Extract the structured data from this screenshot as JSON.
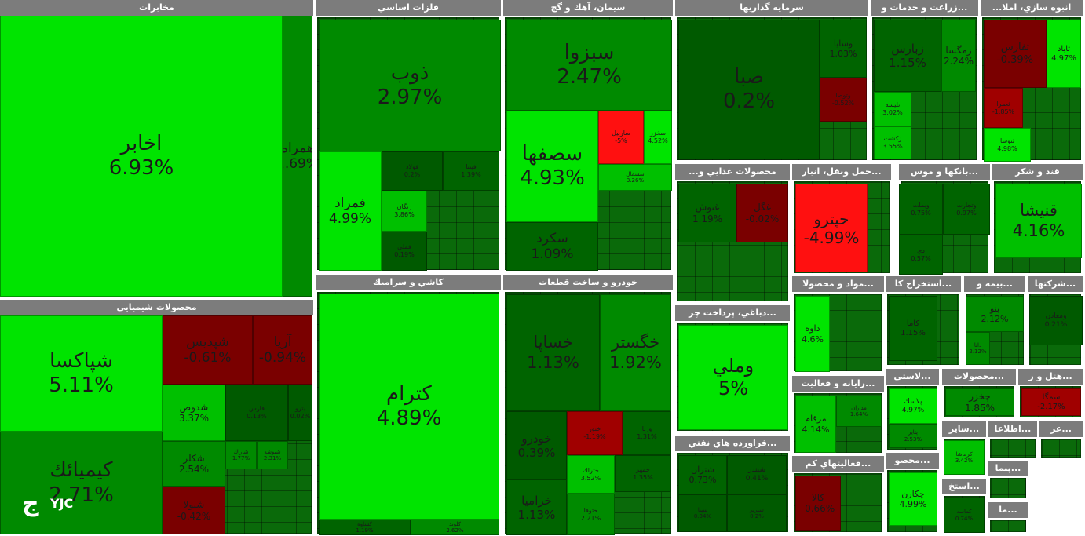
{
  "colors": {
    "header": "#7c7c7c",
    "strong_pos": "#00e400",
    "pos": "#00c000",
    "mid_pos": "#008a00",
    "weak_pos": "#006400",
    "neutral": "#005a00",
    "weak_neg": "#7a0000",
    "neg": "#a00000",
    "strong_neg": "#ff1010"
  },
  "logo": {
    "brand": "YJC",
    "icon": "yjc-logo-icon"
  },
  "chart_data": {
    "type": "treemap",
    "sectors": [
      {
        "name": "مخابرات",
        "items": [
          {
            "symbol": "اخابر",
            "change": "6.93%",
            "value": 6.93
          },
          {
            "symbol": "همراه",
            "change": "2.69%",
            "value": 2.69
          }
        ]
      },
      {
        "name": "محصولات شيميايي",
        "items": [
          {
            "symbol": "شپاكسا",
            "change": "5.11%",
            "value": 5.11
          },
          {
            "symbol": "كيميائك",
            "change": "2.71%",
            "value": 2.71
          },
          {
            "symbol": "شپديس",
            "change": "-0.61%",
            "value": -0.61
          },
          {
            "symbol": "آريا",
            "change": "-0.94%",
            "value": -0.94
          },
          {
            "symbol": "شدوص",
            "change": "3.37%",
            "value": 3.37
          },
          {
            "symbol": "شكلر",
            "change": "2.54%",
            "value": 2.54
          },
          {
            "symbol": "فارس",
            "change": "0.13%",
            "value": 0.13
          },
          {
            "symbol": "بترو",
            "change": "0.02%",
            "value": 0.02
          },
          {
            "symbol": "شاراك",
            "change": "1.77%",
            "value": 1.77
          },
          {
            "symbol": "شيوشه",
            "change": "2.31%",
            "value": 2.31
          },
          {
            "symbol": "شبولا",
            "change": "-0.42%",
            "value": -0.42
          }
        ]
      },
      {
        "name": "فلزات اساسي",
        "items": [
          {
            "symbol": "ذوب",
            "change": "2.97%",
            "value": 2.97
          },
          {
            "symbol": "فمراد",
            "change": "4.99%",
            "value": 4.99
          },
          {
            "symbol": "فولاد",
            "change": "0.2%",
            "value": 0.2
          },
          {
            "symbol": "فپنتا",
            "change": "1.39%",
            "value": 1.39
          },
          {
            "symbol": "زنگان",
            "change": "3.86%",
            "value": 3.86
          },
          {
            "symbol": "فملي",
            "change": "0.19%",
            "value": 0.19
          }
        ]
      },
      {
        "name": "كاشي و سراميك",
        "items": [
          {
            "symbol": "كترام",
            "change": "4.89%",
            "value": 4.89
          },
          {
            "symbol": "كساوه",
            "change": "1.19%",
            "value": 1.19
          },
          {
            "symbol": "كلوند",
            "change": "2.62%",
            "value": 2.62
          }
        ]
      },
      {
        "name": "سيمان، آهك و گچ",
        "items": [
          {
            "symbol": "سبزوا",
            "change": "2.47%",
            "value": 2.47
          },
          {
            "symbol": "سصفها",
            "change": "4.93%",
            "value": 4.93
          },
          {
            "symbol": "سكرد",
            "change": "1.09%",
            "value": 1.09
          },
          {
            "symbol": "ساربيل",
            "change": "-5%",
            "value": -5
          },
          {
            "symbol": "سخزر",
            "change": "4.52%",
            "value": 4.52
          },
          {
            "symbol": "سشمال",
            "change": "3.26%",
            "value": 3.26
          }
        ]
      },
      {
        "name": "خودرو و ساخت قطعات",
        "items": [
          {
            "symbol": "خساپا",
            "change": "1.13%",
            "value": 1.13
          },
          {
            "symbol": "خگستر",
            "change": "1.92%",
            "value": 1.92
          },
          {
            "symbol": "خودرو",
            "change": "0.39%",
            "value": 0.39
          },
          {
            "symbol": "خراميا",
            "change": "1.13%",
            "value": 1.13
          },
          {
            "symbol": "ختور",
            "change": "-1.19%",
            "value": -1.19
          },
          {
            "symbol": "ورنا",
            "change": "1.31%",
            "value": 1.31
          },
          {
            "symbol": "ختراك",
            "change": "3.52%",
            "value": 3.52
          },
          {
            "symbol": "خمهر",
            "change": "1.35%",
            "value": 1.35
          },
          {
            "symbol": "ختوقا",
            "change": "2.21%",
            "value": 2.21
          }
        ]
      },
      {
        "name": "سرمايه گذاريها",
        "items": [
          {
            "symbol": "صبا",
            "change": "0.2%",
            "value": 0.2
          },
          {
            "symbol": "وسايا",
            "change": "1.03%",
            "value": 1.03
          },
          {
            "symbol": "وتوصا",
            "change": "-0.52%",
            "value": -0.52
          }
        ]
      },
      {
        "name": "...زراعت و خدمات و",
        "items": [
          {
            "symbol": "زبارس",
            "change": "1.15%",
            "value": 1.15
          },
          {
            "symbol": "زمگسا",
            "change": "2.24%",
            "value": 2.24
          },
          {
            "symbol": "تليسه",
            "change": "3.02%",
            "value": 3.02
          },
          {
            "symbol": "زكشت",
            "change": "3.55%",
            "value": 3.55
          }
        ]
      },
      {
        "name": "انبوه سازي، املا...",
        "items": [
          {
            "symbol": "ثفارس",
            "change": "-0.39%",
            "value": -0.39
          },
          {
            "symbol": "ثاباد",
            "change": "4.97%",
            "value": 4.97
          },
          {
            "symbol": "ثعمرا",
            "change": "-1.85%",
            "value": -1.85
          },
          {
            "symbol": "ثنوسا",
            "change": "4.98%",
            "value": 4.98
          }
        ]
      },
      {
        "name": "محصولات غذايي و...",
        "items": [
          {
            "symbol": "غنوش",
            "change": "1.19%",
            "value": 1.19
          },
          {
            "symbol": "غگل",
            "change": "-0.02%",
            "value": -0.02
          }
        ]
      },
      {
        "name": "...حمل ونقل، انبار",
        "items": [
          {
            "symbol": "حپترو",
            "change": "-4.99%",
            "value": -4.99
          }
        ]
      },
      {
        "name": "...بانكها و موس",
        "items": [
          {
            "symbol": "وبملت",
            "change": "0.75%",
            "value": 0.75
          },
          {
            "symbol": "وتجارت",
            "change": "0.97%",
            "value": 0.97
          },
          {
            "symbol": "دي",
            "change": "0.57%",
            "value": 0.57
          }
        ]
      },
      {
        "name": "قند و شكر",
        "items": [
          {
            "symbol": "قنيشا",
            "change": "4.16%",
            "value": 4.16
          }
        ]
      },
      {
        "name": "...دباغي، پرداخت چر",
        "items": [
          {
            "symbol": "وملي",
            "change": "5%",
            "value": 5
          }
        ]
      },
      {
        "name": "...مواد و محصولا",
        "items": [
          {
            "symbol": "داوه",
            "change": "4.6%",
            "value": 4.6
          }
        ]
      },
      {
        "name": "...استخراج كا",
        "items": [
          {
            "symbol": "كاما",
            "change": "1.15%",
            "value": 1.15
          }
        ]
      },
      {
        "name": "...بيمه و",
        "items": [
          {
            "symbol": "بنو",
            "change": "2.12%",
            "value": 2.12
          },
          {
            "symbol": "دانا",
            "change": "2.12%",
            "value": 2.12
          }
        ]
      },
      {
        "name": "...شركتها",
        "items": [
          {
            "symbol": "ومعادن",
            "change": "0.21%",
            "value": 0.21
          }
        ]
      },
      {
        "name": "...رايانه و فعاليت",
        "items": [
          {
            "symbol": "مرقام",
            "change": "4.14%",
            "value": 4.14
          },
          {
            "symbol": "مداران",
            "change": "1.64%",
            "value": 1.64
          }
        ]
      },
      {
        "name": "...لاستي",
        "items": [
          {
            "symbol": "پلاسك",
            "change": "4.97%",
            "value": 4.97
          },
          {
            "symbol": "پتاير",
            "change": "2.53%",
            "value": 2.53
          }
        ]
      },
      {
        "name": "...محصولات",
        "items": [
          {
            "symbol": "چخزر",
            "change": "1.85%",
            "value": 1.85
          }
        ]
      },
      {
        "name": "...هتل و ر",
        "items": [
          {
            "symbol": "سمگا",
            "change": "-2.17%",
            "value": -2.17
          }
        ]
      },
      {
        "name": "...فراورده هاي نفتي",
        "items": [
          {
            "symbol": "شتران",
            "change": "0.73%",
            "value": 0.73
          },
          {
            "symbol": "شپنا",
            "change": "0.34%",
            "value": 0.34
          },
          {
            "symbol": "شبندر",
            "change": "0.41%",
            "value": 0.41
          },
          {
            "symbol": "شبريز",
            "change": "0.2%",
            "value": 0.2
          }
        ]
      },
      {
        "name": "...فعاليتهاي كم",
        "items": [
          {
            "symbol": "كالا",
            "change": "-0.66%",
            "value": -0.66
          }
        ]
      },
      {
        "name": "...محصو",
        "items": [
          {
            "symbol": "چكارن",
            "change": "4.99%",
            "value": 4.99
          }
        ]
      },
      {
        "name": "...استخ",
        "items": [
          {
            "symbol": "كماسه",
            "change": "0.74%",
            "value": 0.74
          }
        ]
      },
      {
        "name": "...ساير",
        "items": [
          {
            "symbol": "كرماشا",
            "change": "3.42%",
            "value": 3.42
          }
        ]
      },
      {
        "name": "...اطلاعا",
        "items": []
      },
      {
        "name": "...عر",
        "items": []
      },
      {
        "name": "...پيما",
        "items": []
      },
      {
        "name": "...ما",
        "items": []
      }
    ]
  }
}
